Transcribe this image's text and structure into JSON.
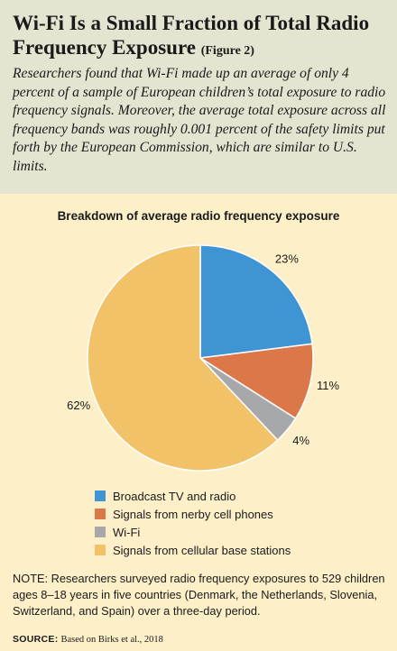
{
  "header": {
    "title": "Wi-Fi Is a Small Fraction of Total Radio Frequency Exposure",
    "figure_label": "(Figure 2)",
    "intro": "Researchers found that Wi-Fi made up an average of only 4 percent of a sample of European children’s total exposure to radio frequency signals. Moreover, the average total exposure across all frequency bands was roughly 0.001 percent of the safety limits put forth by the European Commission, which are similar to U.S. limits."
  },
  "chart_data": {
    "type": "pie",
    "title": "Breakdown of average radio frequency exposure",
    "slices": [
      {
        "name": "Broadcast TV and radio",
        "value": 23,
        "label": "23%",
        "color": "#3f95d3"
      },
      {
        "name": "Signals from nerby cell phones",
        "value": 11,
        "label": "11%",
        "color": "#dc774a"
      },
      {
        "name": "Wi-Fi",
        "value": 4,
        "label": "4%",
        "color": "#a7a8aa"
      },
      {
        "name": "Signals from cellular base stations",
        "value": 62,
        "label": "62%",
        "color": "#f1c268"
      }
    ],
    "start_angle": "top",
    "direction": "clockwise",
    "legend_position": "bottom"
  },
  "footer": {
    "note": "NOTE: Researchers surveyed radio frequency exposures to 529 children ages 8–18 years in five countries (Denmark, the Netherlands, Slovenia, Switzerland, and Spain) over a three-day period.",
    "source_label": "SOURCE:",
    "source_text": "Based on Birks et al., 2018"
  }
}
